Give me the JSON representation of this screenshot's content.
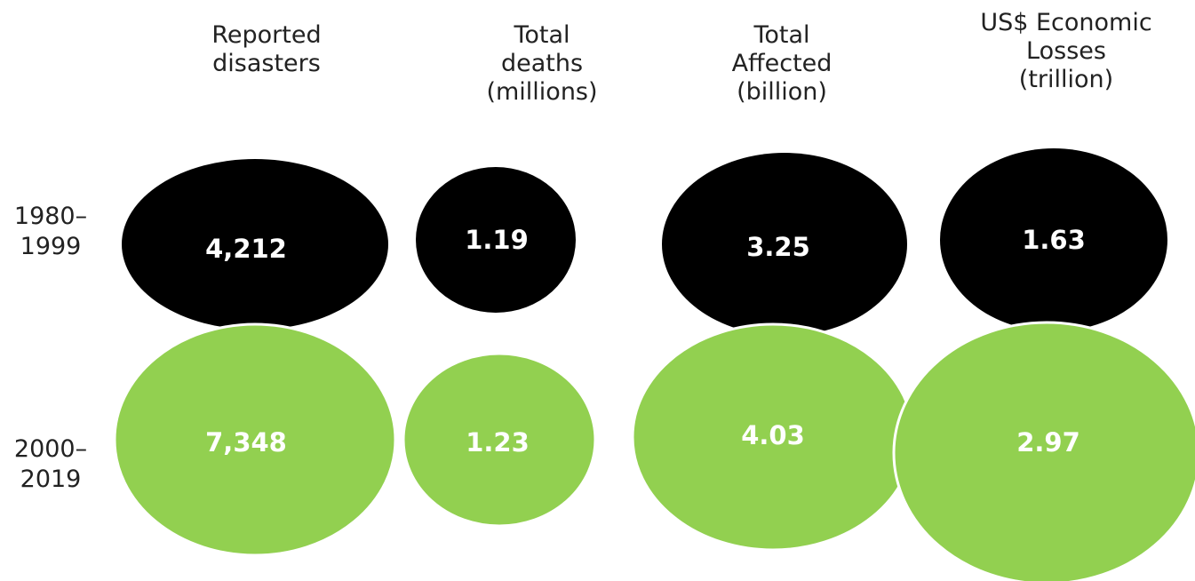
{
  "chart_data": {
    "type": "bubble",
    "columns": [
      "Reported\ndisasters",
      "Total\ndeaths\n(millions)",
      "Total\nAffected\n(billion)",
      "US$ Economic\nLosses\n(trillion)"
    ],
    "rows": [
      "1980–\n1999",
      "2000–\n2019"
    ],
    "series": [
      {
        "values": [
          4212,
          1.19,
          3.25,
          1.63
        ],
        "labels": [
          "4,212",
          "1.19",
          "3.25",
          "1.63"
        ],
        "color": "#000000"
      },
      {
        "values": [
          7348,
          1.23,
          4.03,
          2.97
        ],
        "labels": [
          "7,348",
          "1.23",
          "4.03",
          "2.97"
        ],
        "color": "#92d050"
      }
    ]
  }
}
